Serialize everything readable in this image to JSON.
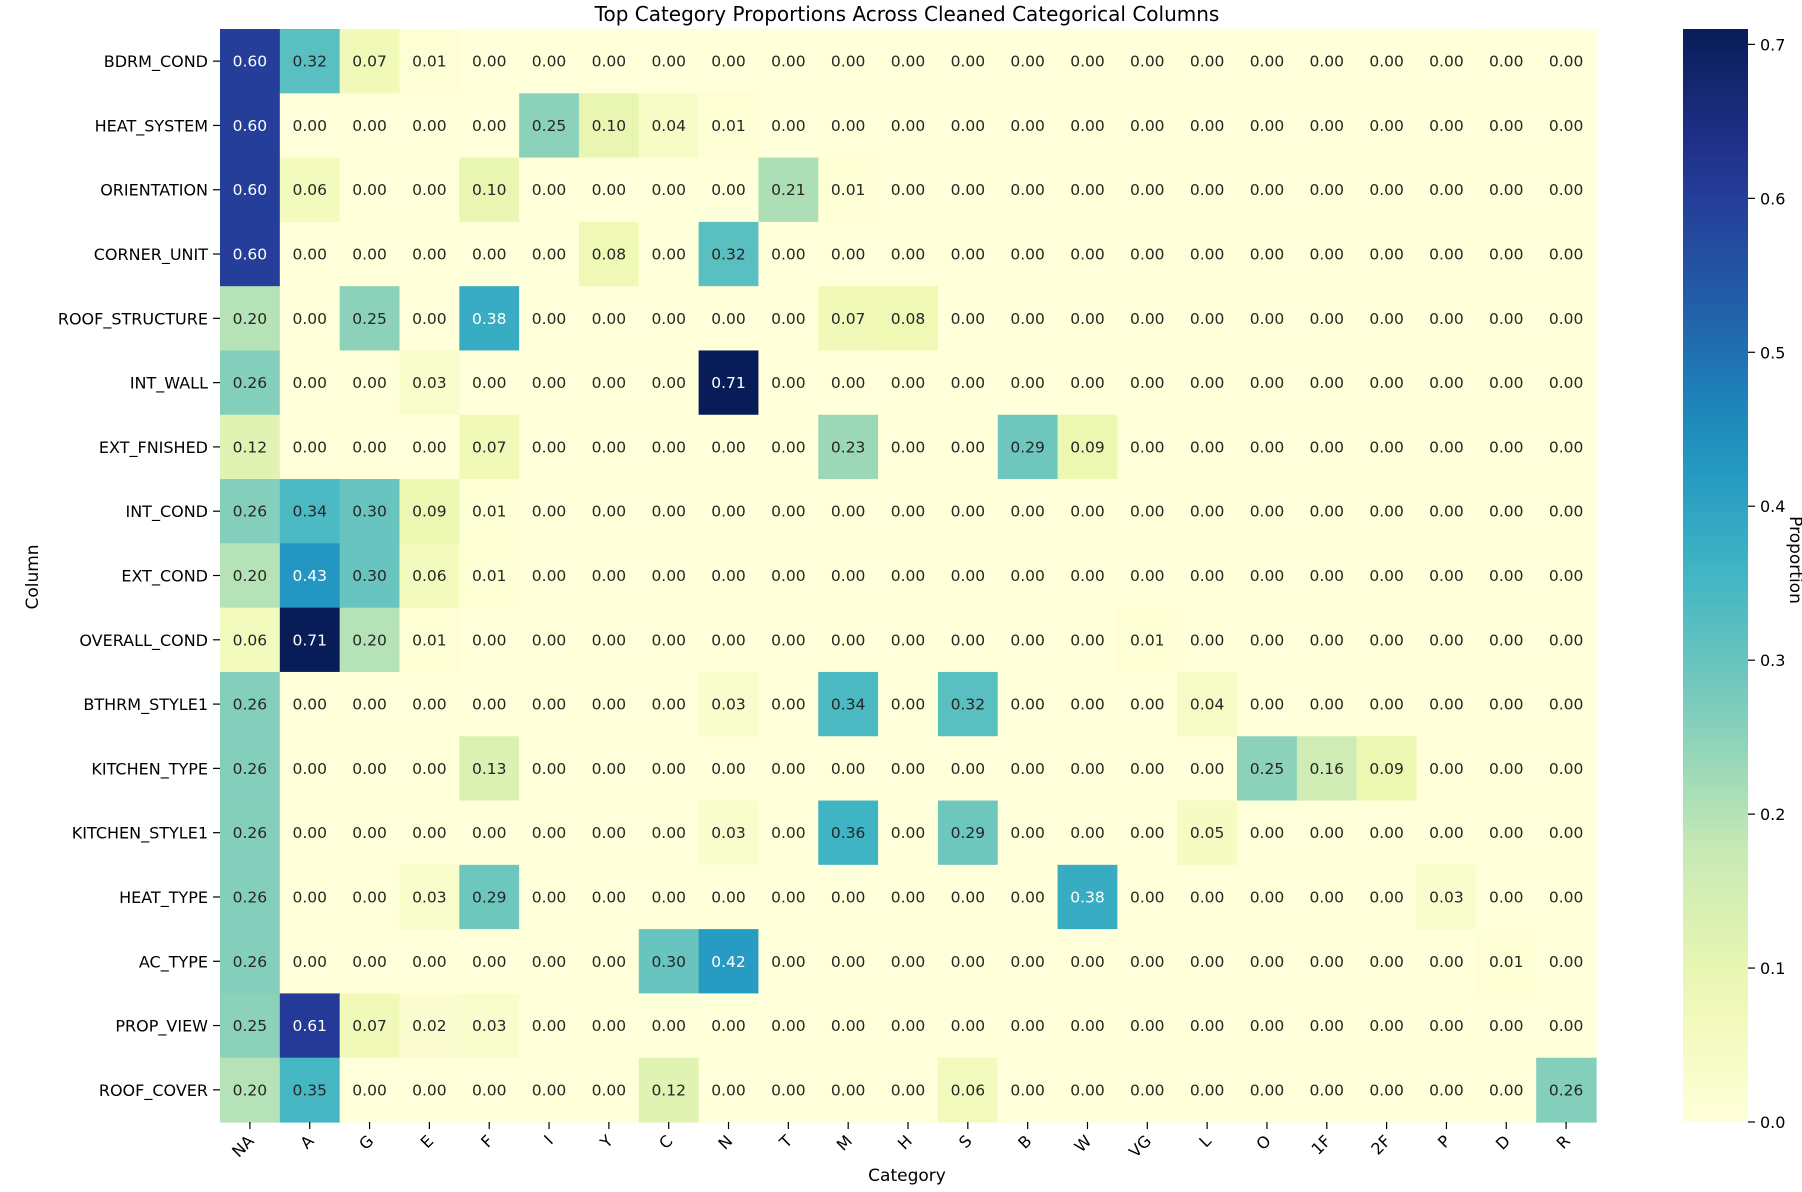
{
  "chart_data": {
    "type": "heatmap",
    "title": "Top Category Proportions Across Cleaned Categorical Columns",
    "xlabel": "Category",
    "ylabel": "Column",
    "colorbar_label": "Proportion",
    "colormap": "YlGnBu",
    "value_range": [
      0.0,
      0.71
    ],
    "colorbar_ticks": [
      "0.0",
      "0.1",
      "0.2",
      "0.3",
      "0.4",
      "0.5",
      "0.6",
      "0.7"
    ],
    "colorbar_tick_values": [
      0.0,
      0.1,
      0.2,
      0.3,
      0.4,
      0.5,
      0.6,
      0.7
    ],
    "columns": [
      "NA",
      "A",
      "G",
      "E",
      "F",
      "I",
      "Y",
      "C",
      "N",
      "T",
      "M",
      "H",
      "S",
      "B",
      "W",
      "VG",
      "L",
      "O",
      "1F",
      "2F",
      "P",
      "D",
      "R"
    ],
    "rows": [
      "BDRM_COND",
      "HEAT_SYSTEM",
      "ORIENTATION",
      "CORNER_UNIT",
      "ROOF_STRUCTURE",
      "INT_WALL",
      "EXT_FNISHED",
      "INT_COND",
      "EXT_COND",
      "OVERALL_COND",
      "BTHRM_STYLE1",
      "KITCHEN_TYPE",
      "KITCHEN_STYLE1",
      "HEAT_TYPE",
      "AC_TYPE",
      "PROP_VIEW",
      "ROOF_COVER"
    ],
    "values": [
      [
        0.6,
        0.32,
        0.07,
        0.01,
        0.0,
        0.0,
        0.0,
        0.0,
        0.0,
        0.0,
        0.0,
        0.0,
        0.0,
        0.0,
        0.0,
        0.0,
        0.0,
        0.0,
        0.0,
        0.0,
        0.0,
        0.0,
        0.0
      ],
      [
        0.6,
        0.0,
        0.0,
        0.0,
        0.0,
        0.25,
        0.1,
        0.04,
        0.01,
        0.0,
        0.0,
        0.0,
        0.0,
        0.0,
        0.0,
        0.0,
        0.0,
        0.0,
        0.0,
        0.0,
        0.0,
        0.0,
        0.0
      ],
      [
        0.6,
        0.06,
        0.0,
        0.0,
        0.1,
        0.0,
        0.0,
        0.0,
        0.0,
        0.21,
        0.01,
        0.0,
        0.0,
        0.0,
        0.0,
        0.0,
        0.0,
        0.0,
        0.0,
        0.0,
        0.0,
        0.0,
        0.0
      ],
      [
        0.6,
        0.0,
        0.0,
        0.0,
        0.0,
        0.0,
        0.08,
        0.0,
        0.32,
        0.0,
        0.0,
        0.0,
        0.0,
        0.0,
        0.0,
        0.0,
        0.0,
        0.0,
        0.0,
        0.0,
        0.0,
        0.0,
        0.0
      ],
      [
        0.2,
        0.0,
        0.25,
        0.0,
        0.38,
        0.0,
        0.0,
        0.0,
        0.0,
        0.0,
        0.07,
        0.08,
        0.0,
        0.0,
        0.0,
        0.0,
        0.0,
        0.0,
        0.0,
        0.0,
        0.0,
        0.0,
        0.0
      ],
      [
        0.26,
        0.0,
        0.0,
        0.03,
        0.0,
        0.0,
        0.0,
        0.0,
        0.71,
        0.0,
        0.0,
        0.0,
        0.0,
        0.0,
        0.0,
        0.0,
        0.0,
        0.0,
        0.0,
        0.0,
        0.0,
        0.0,
        0.0
      ],
      [
        0.12,
        0.0,
        0.0,
        0.0,
        0.07,
        0.0,
        0.0,
        0.0,
        0.0,
        0.0,
        0.23,
        0.0,
        0.0,
        0.29,
        0.09,
        0.0,
        0.0,
        0.0,
        0.0,
        0.0,
        0.0,
        0.0,
        0.0
      ],
      [
        0.26,
        0.34,
        0.3,
        0.09,
        0.01,
        0.0,
        0.0,
        0.0,
        0.0,
        0.0,
        0.0,
        0.0,
        0.0,
        0.0,
        0.0,
        0.0,
        0.0,
        0.0,
        0.0,
        0.0,
        0.0,
        0.0,
        0.0
      ],
      [
        0.2,
        0.43,
        0.3,
        0.06,
        0.01,
        0.0,
        0.0,
        0.0,
        0.0,
        0.0,
        0.0,
        0.0,
        0.0,
        0.0,
        0.0,
        0.0,
        0.0,
        0.0,
        0.0,
        0.0,
        0.0,
        0.0,
        0.0
      ],
      [
        0.06,
        0.71,
        0.2,
        0.01,
        0.0,
        0.0,
        0.0,
        0.0,
        0.0,
        0.0,
        0.0,
        0.0,
        0.0,
        0.0,
        0.0,
        0.01,
        0.0,
        0.0,
        0.0,
        0.0,
        0.0,
        0.0,
        0.0
      ],
      [
        0.26,
        0.0,
        0.0,
        0.0,
        0.0,
        0.0,
        0.0,
        0.0,
        0.03,
        0.0,
        0.34,
        0.0,
        0.32,
        0.0,
        0.0,
        0.0,
        0.04,
        0.0,
        0.0,
        0.0,
        0.0,
        0.0,
        0.0
      ],
      [
        0.26,
        0.0,
        0.0,
        0.0,
        0.13,
        0.0,
        0.0,
        0.0,
        0.0,
        0.0,
        0.0,
        0.0,
        0.0,
        0.0,
        0.0,
        0.0,
        0.0,
        0.25,
        0.16,
        0.09,
        0.0,
        0.0,
        0.0
      ],
      [
        0.26,
        0.0,
        0.0,
        0.0,
        0.0,
        0.0,
        0.0,
        0.0,
        0.03,
        0.0,
        0.36,
        0.0,
        0.29,
        0.0,
        0.0,
        0.0,
        0.05,
        0.0,
        0.0,
        0.0,
        0.0,
        0.0,
        0.0
      ],
      [
        0.26,
        0.0,
        0.0,
        0.03,
        0.29,
        0.0,
        0.0,
        0.0,
        0.0,
        0.0,
        0.0,
        0.0,
        0.0,
        0.0,
        0.38,
        0.0,
        0.0,
        0.0,
        0.0,
        0.0,
        0.03,
        0.0,
        0.0
      ],
      [
        0.26,
        0.0,
        0.0,
        0.0,
        0.0,
        0.0,
        0.0,
        0.3,
        0.42,
        0.0,
        0.0,
        0.0,
        0.0,
        0.0,
        0.0,
        0.0,
        0.0,
        0.0,
        0.0,
        0.0,
        0.0,
        0.01,
        0.0
      ],
      [
        0.25,
        0.61,
        0.07,
        0.02,
        0.03,
        0.0,
        0.0,
        0.0,
        0.0,
        0.0,
        0.0,
        0.0,
        0.0,
        0.0,
        0.0,
        0.0,
        0.0,
        0.0,
        0.0,
        0.0,
        0.0,
        0.0,
        0.0
      ],
      [
        0.2,
        0.35,
        0.0,
        0.0,
        0.0,
        0.0,
        0.0,
        0.12,
        0.0,
        0.0,
        0.0,
        0.0,
        0.06,
        0.0,
        0.0,
        0.0,
        0.0,
        0.0,
        0.0,
        0.0,
        0.0,
        0.0,
        0.26
      ]
    ]
  }
}
